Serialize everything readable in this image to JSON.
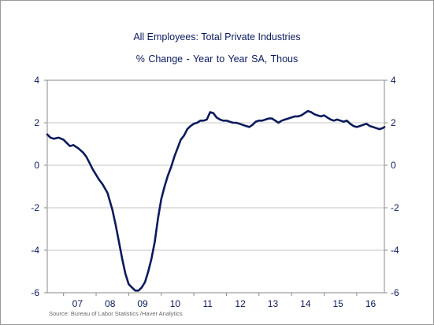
{
  "chart_data": {
    "type": "line",
    "title": "All Employees: Total Private Industries",
    "subtitle": "% Change - Year to Year    SA, Thous",
    "source": "Source:  Bureau of Labor Statistics /Haver Analytics",
    "xlabel": "",
    "ylabel": "",
    "ylim": [
      -6,
      4
    ],
    "yticks": [
      "4",
      "2",
      "0",
      "-2",
      "-4",
      "-6"
    ],
    "ytick_values": [
      4,
      2,
      0,
      -2,
      -4,
      -6
    ],
    "xticks": [
      "07",
      "08",
      "09",
      "10",
      "11",
      "12",
      "13",
      "14",
      "15",
      "16"
    ],
    "xlim": [
      2006.5,
      2016.85
    ],
    "grid": true,
    "line_color": "#0b1a5c",
    "series": [
      {
        "x": [
          2006.5,
          2006.6,
          2006.7,
          2006.85,
          2007.0,
          2007.1,
          2007.2,
          2007.3,
          2007.45,
          2007.6,
          2007.7,
          2007.8,
          2007.9,
          2008.0,
          2008.1,
          2008.2,
          2008.35,
          2008.5,
          2008.6,
          2008.7,
          2008.8,
          2008.9,
          2009.0,
          2009.1,
          2009.2,
          2009.3,
          2009.4,
          2009.5,
          2009.6,
          2009.7,
          2009.8,
          2009.9,
          2010.0,
          2010.1,
          2010.2,
          2010.3,
          2010.4,
          2010.5,
          2010.6,
          2010.7,
          2010.8,
          2010.9,
          2011.0,
          2011.1,
          2011.2,
          2011.3,
          2011.4,
          2011.5,
          2011.6,
          2011.7,
          2011.8,
          2011.9,
          2012.0,
          2012.1,
          2012.2,
          2012.3,
          2012.4,
          2012.5,
          2012.6,
          2012.7,
          2012.8,
          2012.9,
          2013.0,
          2013.1,
          2013.2,
          2013.3,
          2013.4,
          2013.5,
          2013.6,
          2013.7,
          2013.8,
          2013.9,
          2014.0,
          2014.1,
          2014.2,
          2014.3,
          2014.4,
          2014.5,
          2014.6,
          2014.7,
          2014.8,
          2014.9,
          2015.0,
          2015.1,
          2015.2,
          2015.3,
          2015.4,
          2015.5,
          2015.6,
          2015.7,
          2015.8,
          2015.9,
          2016.0,
          2016.1,
          2016.2,
          2016.3,
          2016.4,
          2016.5,
          2016.6,
          2016.7,
          2016.8,
          2016.85
        ],
        "values": [
          1.45,
          1.3,
          1.25,
          1.3,
          1.2,
          1.05,
          0.9,
          0.95,
          0.8,
          0.6,
          0.4,
          0.1,
          -0.2,
          -0.45,
          -0.7,
          -0.9,
          -1.3,
          -2.1,
          -2.8,
          -3.6,
          -4.4,
          -5.1,
          -5.6,
          -5.75,
          -5.9,
          -5.9,
          -5.75,
          -5.5,
          -5.0,
          -4.4,
          -3.6,
          -2.5,
          -1.6,
          -1.0,
          -0.5,
          -0.1,
          0.4,
          0.8,
          1.2,
          1.4,
          1.7,
          1.85,
          1.95,
          2.0,
          2.1,
          2.1,
          2.15,
          2.5,
          2.45,
          2.25,
          2.15,
          2.1,
          2.1,
          2.05,
          2.0,
          2.0,
          1.95,
          1.9,
          1.85,
          1.8,
          1.9,
          2.05,
          2.1,
          2.1,
          2.15,
          2.2,
          2.2,
          2.1,
          2.0,
          2.1,
          2.15,
          2.2,
          2.25,
          2.3,
          2.3,
          2.35,
          2.45,
          2.55,
          2.5,
          2.4,
          2.35,
          2.3,
          2.35,
          2.25,
          2.15,
          2.1,
          2.15,
          2.1,
          2.05,
          2.1,
          1.95,
          1.85,
          1.8,
          1.85,
          1.9,
          1.95,
          1.85,
          1.8,
          1.75,
          1.7,
          1.75,
          1.8
        ]
      }
    ]
  }
}
